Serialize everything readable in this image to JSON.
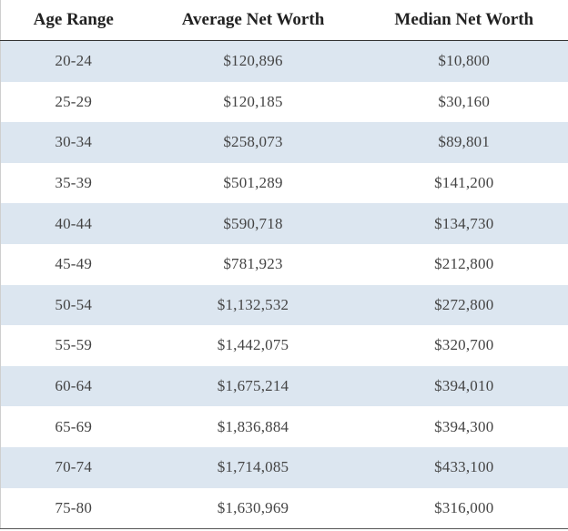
{
  "table": {
    "header": [
      "Age Range",
      "Average Net Worth",
      "Median Net Worth"
    ],
    "rows": [
      [
        "20-24",
        "$120,896",
        "$10,800"
      ],
      [
        "25-29",
        "$120,185",
        "$30,160"
      ],
      [
        "30-34",
        "$258,073",
        "$89,801"
      ],
      [
        "35-39",
        "$501,289",
        "$141,200"
      ],
      [
        "40-44",
        "$590,718",
        "$134,730"
      ],
      [
        "45-49",
        "$781,923",
        "$212,800"
      ],
      [
        "50-54",
        "$1,132,532",
        "$272,800"
      ],
      [
        "55-59",
        "$1,442,075",
        "$320,700"
      ],
      [
        "60-64",
        "$1,675,214",
        "$394,010"
      ],
      [
        "65-69",
        "$1,836,884",
        "$394,300"
      ],
      [
        "70-74",
        "$1,714,085",
        "$433,100"
      ],
      [
        "75-80",
        "$1,630,969",
        "$316,000"
      ]
    ]
  }
}
